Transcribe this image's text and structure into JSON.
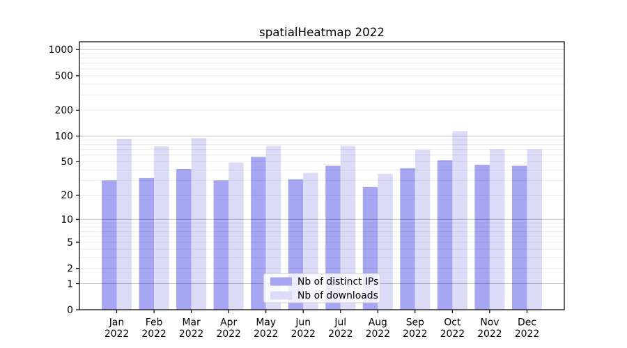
{
  "figure": {
    "title": "spatialHeatmap 2022"
  },
  "chart_data": {
    "type": "bar",
    "title": "spatialHeatmap 2022",
    "categories": [
      "Jan",
      "Feb",
      "Mar",
      "Apr",
      "May",
      "Jun",
      "Jul",
      "Aug",
      "Sep",
      "Oct",
      "Nov",
      "Dec"
    ],
    "category_year": "2022",
    "series": [
      {
        "name": "Nb of distinct IPs",
        "color": "#a6a6f2",
        "values": [
          30,
          32,
          41,
          30,
          57,
          31,
          45,
          25,
          42,
          52,
          46,
          45
        ]
      },
      {
        "name": "Nb of downloads",
        "color": "#dcdcf9",
        "values": [
          92,
          76,
          95,
          49,
          77,
          37,
          77,
          36,
          69,
          114,
          70,
          70
        ]
      }
    ],
    "yscale": "log10(1+x)",
    "yticks": [
      0,
      1,
      2,
      5,
      10,
      20,
      50,
      100,
      200,
      500,
      1000
    ],
    "ylim": [
      0,
      1236
    ],
    "xlabel": "",
    "ylabel": "",
    "grid": "horizontal",
    "legend": {
      "position": "inside-bottom-center",
      "labels": [
        "Nb of distinct IPs",
        "Nb of downloads"
      ]
    },
    "colors": {
      "spine": "#000000",
      "tick_label": "#000000",
      "grid_major": "rgba(0,0,0,0.24)",
      "grid_minor": "rgba(0,0,0,0.08)",
      "legend_bg": "rgba(255,255,255,0.8)",
      "legend_border": "#cccccc",
      "background": "#ffffff"
    }
  }
}
